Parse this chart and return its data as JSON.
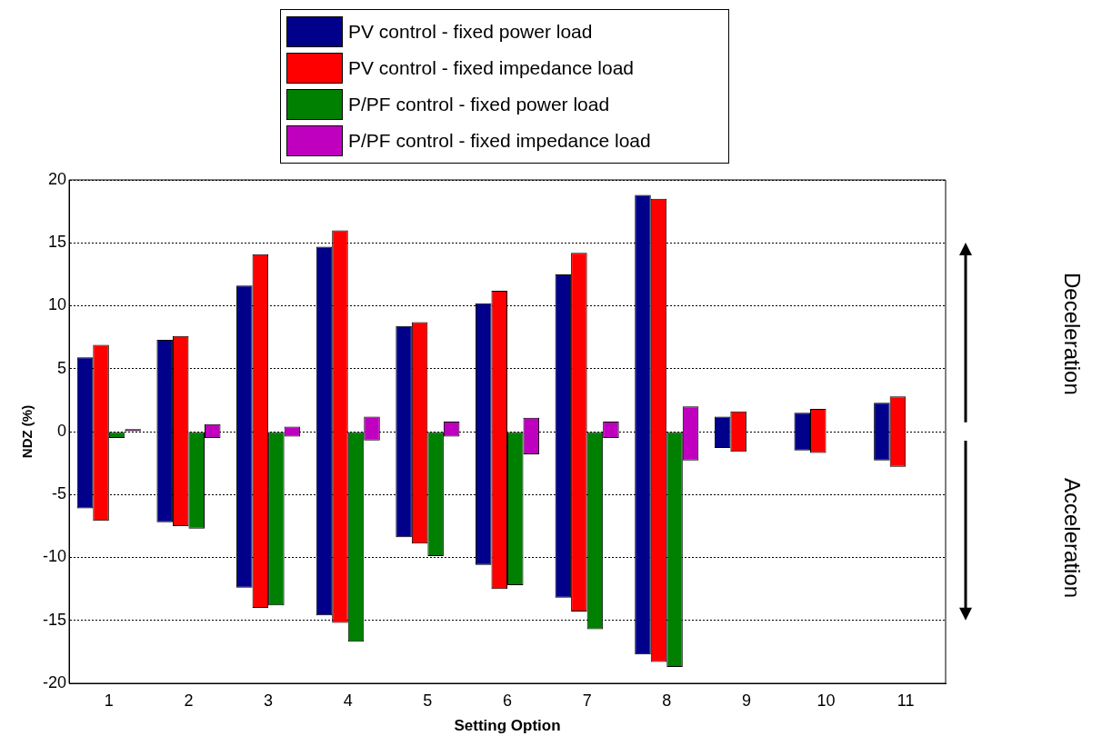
{
  "chart_data": {
    "type": "bar",
    "xlabel": "Setting Option",
    "ylabel": "NDZ (%)",
    "categories": [
      "1",
      "2",
      "3",
      "4",
      "5",
      "6",
      "7",
      "8",
      "9",
      "10",
      "11"
    ],
    "legend": "top",
    "grid": "y",
    "ylim": [
      -20,
      20
    ],
    "yticks": [
      -20,
      -15,
      -10,
      -5,
      0,
      5,
      10,
      15,
      20
    ],
    "annotations": [
      "Deceleration",
      "Acceleration"
    ],
    "series": [
      {
        "name": "PV control - fixed power load",
        "color": "#00008b",
        "base": [
          -6.1,
          -7.2,
          -12.4,
          -14.6,
          -8.4,
          -10.6,
          -13.2,
          -17.7,
          -1.3,
          -1.5,
          -2.3
        ],
        "values": [
          12.0,
          14.5,
          24.0,
          29.3,
          16.8,
          20.8,
          25.7,
          36.5,
          2.5,
          3.0,
          4.6
        ]
      },
      {
        "name": "PV control - fixed impedance load",
        "color": "#ff0000",
        "base": [
          -7.1,
          -7.5,
          -14.0,
          -15.2,
          -8.9,
          -12.5,
          -14.3,
          -18.3,
          -1.6,
          -1.7,
          -2.8
        ],
        "values": [
          14.0,
          15.1,
          28.1,
          31.2,
          17.6,
          23.7,
          28.5,
          36.8,
          3.2,
          3.5,
          5.6
        ]
      },
      {
        "name": "P/PF control - fixed power load",
        "color": "#008000",
        "base": [
          -0.5,
          -7.7,
          -13.8,
          -16.7,
          -9.9,
          -12.2,
          -15.7,
          -18.7,
          null,
          null,
          null
        ],
        "values": [
          0.5,
          7.7,
          13.8,
          16.7,
          9.9,
          12.2,
          15.7,
          18.7,
          null,
          null,
          null
        ]
      },
      {
        "name": "P/PF control - fixed impedance load",
        "color": "#bf00bf",
        "base": [
          0,
          -0.5,
          -0.4,
          -0.7,
          -0.4,
          -1.8,
          -0.5,
          -2.3,
          null,
          null,
          null
        ],
        "values": [
          0.2,
          1.1,
          0.8,
          1.9,
          1.2,
          2.9,
          1.3,
          4.3,
          null,
          null,
          null
        ]
      }
    ]
  }
}
